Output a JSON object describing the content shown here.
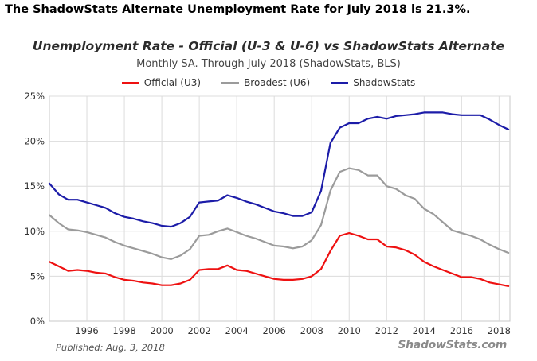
{
  "headline": "The ShadowStats Alternate Unemployment Rate for July 2018 is 21.3%.",
  "published": "Published: Aug. 3, 2018",
  "watermark": "ShadowStats.com",
  "chart_data": {
    "type": "line",
    "title": "Unemployment Rate - Official (U-3 & U-6) vs ShadowStats Alternate",
    "subtitle": "Monthly SA. Through July 2018  (ShadowStats, BLS)",
    "xlabel": "",
    "ylabel": "",
    "xlim": [
      1994.0,
      2018.58
    ],
    "ylim": [
      0,
      25
    ],
    "y_ticks": [
      0,
      5,
      10,
      15,
      20,
      25
    ],
    "y_tick_labels": [
      "0%",
      "5%",
      "10%",
      "15%",
      "20%",
      "25%"
    ],
    "x_ticks": [
      1996,
      1998,
      2000,
      2002,
      2004,
      2006,
      2008,
      2010,
      2012,
      2014,
      2016,
      2018
    ],
    "x_tick_labels": [
      "1996",
      "1998",
      "2000",
      "2002",
      "2004",
      "2006",
      "2008",
      "2010",
      "2012",
      "2014",
      "2016",
      "2018"
    ],
    "grid": true,
    "legend_position": "top",
    "series": [
      {
        "name": "Official (U3)",
        "color": "#ee1111",
        "x": [
          1994.0,
          1994.5,
          1995.0,
          1995.5,
          1996.0,
          1996.5,
          1997.0,
          1997.5,
          1998.0,
          1998.5,
          1999.0,
          1999.5,
          2000.0,
          2000.5,
          2001.0,
          2001.5,
          2002.0,
          2002.5,
          2003.0,
          2003.5,
          2004.0,
          2004.5,
          2005.0,
          2005.5,
          2006.0,
          2006.5,
          2007.0,
          2007.5,
          2008.0,
          2008.5,
          2009.0,
          2009.5,
          2010.0,
          2010.5,
          2011.0,
          2011.5,
          2012.0,
          2012.5,
          2013.0,
          2013.5,
          2014.0,
          2014.5,
          2015.0,
          2015.5,
          2016.0,
          2016.5,
          2017.0,
          2017.5,
          2018.0,
          2018.5
        ],
        "y": [
          6.6,
          6.1,
          5.6,
          5.7,
          5.6,
          5.4,
          5.3,
          4.9,
          4.6,
          4.5,
          4.3,
          4.2,
          4.0,
          4.0,
          4.2,
          4.6,
          5.7,
          5.8,
          5.8,
          6.2,
          5.7,
          5.6,
          5.3,
          5.0,
          4.7,
          4.6,
          4.6,
          4.7,
          5.0,
          5.8,
          7.8,
          9.5,
          9.8,
          9.5,
          9.1,
          9.1,
          8.3,
          8.2,
          7.9,
          7.4,
          6.6,
          6.1,
          5.7,
          5.3,
          4.9,
          4.9,
          4.7,
          4.3,
          4.1,
          3.9
        ]
      },
      {
        "name": "Broadest (U6)",
        "color": "#9b9b9b",
        "x": [
          1994.0,
          1994.5,
          1995.0,
          1995.5,
          1996.0,
          1996.5,
          1997.0,
          1997.5,
          1998.0,
          1998.5,
          1999.0,
          1999.5,
          2000.0,
          2000.5,
          2001.0,
          2001.5,
          2002.0,
          2002.5,
          2003.0,
          2003.5,
          2004.0,
          2004.5,
          2005.0,
          2005.5,
          2006.0,
          2006.5,
          2007.0,
          2007.5,
          2008.0,
          2008.5,
          2009.0,
          2009.5,
          2010.0,
          2010.5,
          2011.0,
          2011.5,
          2012.0,
          2012.5,
          2013.0,
          2013.5,
          2014.0,
          2014.5,
          2015.0,
          2015.5,
          2016.0,
          2016.5,
          2017.0,
          2017.5,
          2018.0,
          2018.5
        ],
        "y": [
          11.8,
          10.9,
          10.2,
          10.1,
          9.9,
          9.6,
          9.3,
          8.8,
          8.4,
          8.1,
          7.8,
          7.5,
          7.1,
          6.9,
          7.3,
          8.0,
          9.5,
          9.6,
          10.0,
          10.3,
          9.9,
          9.5,
          9.2,
          8.8,
          8.4,
          8.3,
          8.1,
          8.3,
          9.0,
          10.7,
          14.5,
          16.6,
          17.0,
          16.8,
          16.2,
          16.2,
          15.0,
          14.7,
          14.0,
          13.6,
          12.5,
          11.9,
          11.0,
          10.1,
          9.8,
          9.5,
          9.1,
          8.5,
          8.0,
          7.6
        ]
      },
      {
        "name": "ShadowStats",
        "color": "#1c1ca8",
        "x": [
          1994.0,
          1994.5,
          1995.0,
          1995.5,
          1996.0,
          1996.5,
          1997.0,
          1997.5,
          1998.0,
          1998.5,
          1999.0,
          1999.5,
          2000.0,
          2000.5,
          2001.0,
          2001.5,
          2002.0,
          2002.5,
          2003.0,
          2003.5,
          2004.0,
          2004.5,
          2005.0,
          2005.5,
          2006.0,
          2006.5,
          2007.0,
          2007.5,
          2008.0,
          2008.5,
          2009.0,
          2009.5,
          2010.0,
          2010.5,
          2011.0,
          2011.5,
          2012.0,
          2012.5,
          2013.0,
          2013.5,
          2014.0,
          2014.5,
          2015.0,
          2015.5,
          2016.0,
          2016.5,
          2017.0,
          2017.5,
          2018.0,
          2018.5
        ],
        "y": [
          15.3,
          14.1,
          13.5,
          13.5,
          13.2,
          12.9,
          12.6,
          12.0,
          11.6,
          11.4,
          11.1,
          10.9,
          10.6,
          10.5,
          10.9,
          11.6,
          13.2,
          13.3,
          13.4,
          14.0,
          13.7,
          13.3,
          13.0,
          12.6,
          12.2,
          12.0,
          11.7,
          11.7,
          12.1,
          14.5,
          19.8,
          21.5,
          22.0,
          22.0,
          22.5,
          22.7,
          22.5,
          22.8,
          22.9,
          23.0,
          23.2,
          23.2,
          23.2,
          23.0,
          22.9,
          22.9,
          22.9,
          22.4,
          21.8,
          21.3
        ]
      }
    ]
  }
}
